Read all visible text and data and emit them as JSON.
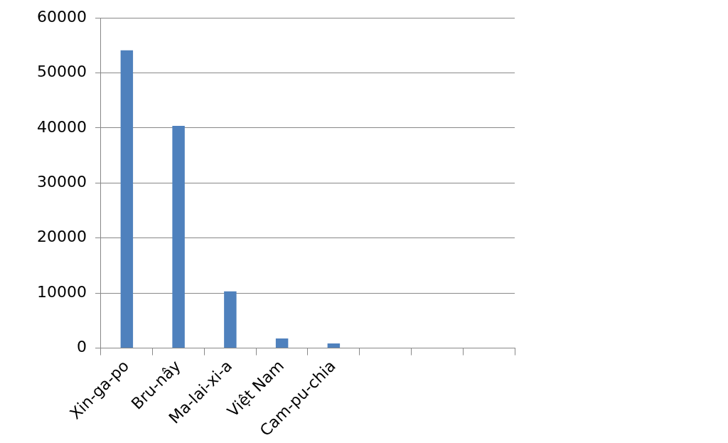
{
  "chart_data": {
    "type": "bar",
    "categories": [
      "Xin-ga-po",
      "Bru-nây",
      "Ma-lai-xi-a",
      "Việt Nam",
      "Cam-pu-chia",
      null,
      null,
      null
    ],
    "values": [
      54100,
      40400,
      10300,
      1750,
      850,
      null,
      null,
      null
    ],
    "color": "#4f81bd",
    "ylim": [
      0,
      60000
    ],
    "yticks": [
      0,
      10000,
      20000,
      30000,
      40000,
      50000,
      60000
    ],
    "grid": "y",
    "legend": false
  }
}
